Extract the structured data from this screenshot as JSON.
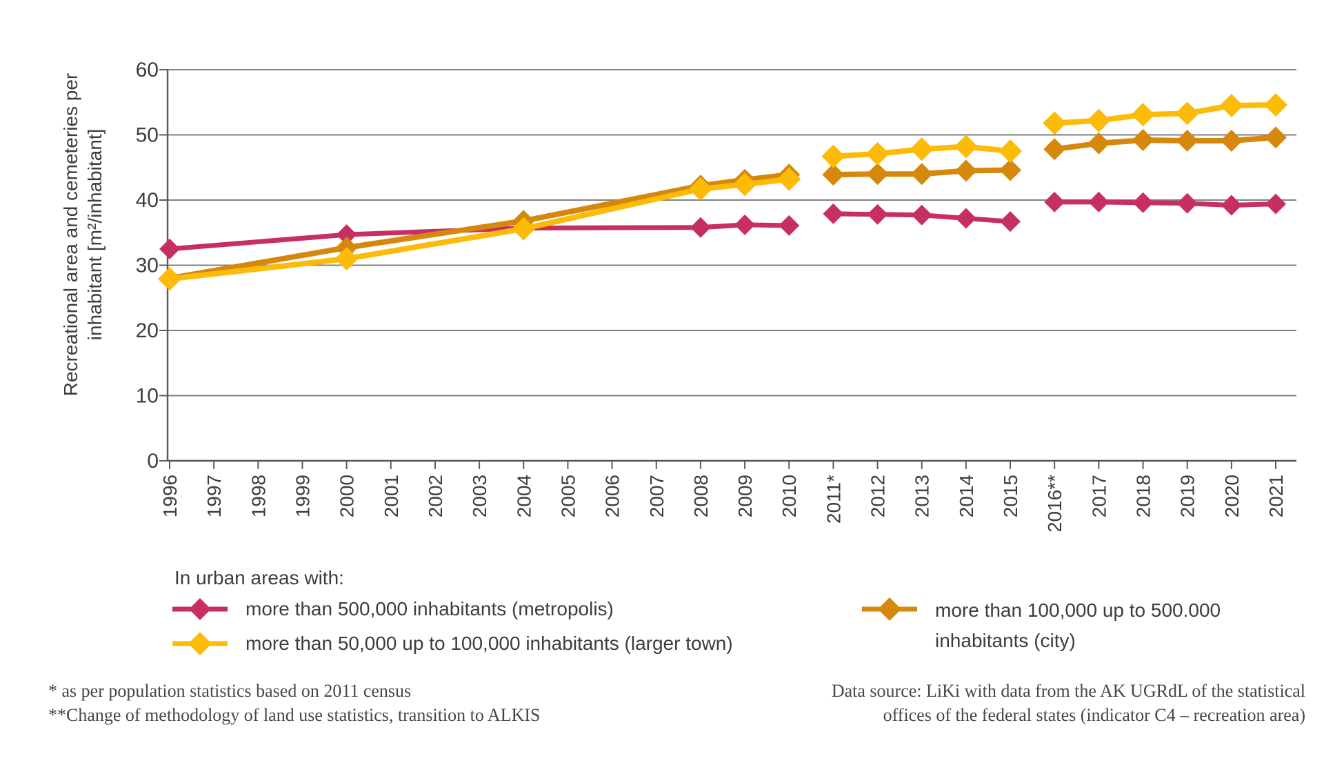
{
  "y_axis": {
    "title_line1": "Recreational area and cemeteries per",
    "title_line2": "inhabitant [m²/inhabitant]",
    "ticks": [
      "0",
      "10",
      "20",
      "30",
      "40",
      "50",
      "60"
    ]
  },
  "x_axis": {
    "labels": [
      "1996",
      "1997",
      "1998",
      "1999",
      "2000",
      "2001",
      "2002",
      "2003",
      "2004",
      "2005",
      "2006",
      "2007",
      "2008",
      "2009",
      "2010",
      "2011*",
      "2012",
      "2013",
      "2014",
      "2015",
      "2016**",
      "2017",
      "2018",
      "2019",
      "2020",
      "2021"
    ]
  },
  "chart_data": {
    "type": "line",
    "title": "",
    "xlabel": "",
    "ylabel": "Recreational area and cemeteries per inhabitant [m²/inhabitant]",
    "ylim": [
      0,
      60
    ],
    "ytick_step": 10,
    "grid": true,
    "legend_position": "bottom",
    "notes": "Lines are broken into three segments with gaps between 2010/2011 and 2015/2016; data points exist only at the listed years",
    "series": [
      {
        "name": "more than 500,000 inhabitants (metropolis)",
        "key": "metropolis",
        "color": "#c72f63",
        "line_width": 7,
        "marker": "diamond",
        "marker_r": 15,
        "segments": [
          {
            "x": [
              1996,
              2000,
              2004,
              2008,
              2009,
              2010
            ],
            "y": [
              32.5,
              34.7,
              35.7,
              35.8,
              36.2,
              36.1
            ]
          },
          {
            "x": [
              2011,
              2012,
              2013,
              2014,
              2015
            ],
            "y": [
              37.9,
              37.8,
              37.7,
              37.2,
              36.7
            ]
          },
          {
            "x": [
              2016,
              2017,
              2018,
              2019,
              2020,
              2021
            ],
            "y": [
              39.7,
              39.7,
              39.6,
              39.5,
              39.2,
              39.4
            ]
          }
        ]
      },
      {
        "name": "more than 100,000 up to 500.000 inhabitants (city)",
        "key": "city",
        "color": "#d5880c",
        "line_width": 8,
        "marker": "diamond",
        "marker_r": 16,
        "segments": [
          {
            "x": [
              1996,
              2000,
              2004,
              2008,
              2009,
              2010
            ],
            "y": [
              28.0,
              32.7,
              36.8,
              42.2,
              43.1,
              43.9
            ]
          },
          {
            "x": [
              2011,
              2012,
              2013,
              2014,
              2015
            ],
            "y": [
              43.9,
              44.0,
              44.0,
              44.5,
              44.6
            ]
          },
          {
            "x": [
              2016,
              2017,
              2018,
              2019,
              2020,
              2021
            ],
            "y": [
              47.8,
              48.7,
              49.2,
              49.1,
              49.1,
              49.6
            ]
          }
        ]
      },
      {
        "name": "more than 50,000 up to 100,000 inhabitants (larger town)",
        "key": "larger_town",
        "color": "#fbbb07",
        "line_width": 8,
        "marker": "diamond",
        "marker_r": 17,
        "segments": [
          {
            "x": [
              1996,
              2000,
              2004,
              2008,
              2009,
              2010
            ],
            "y": [
              27.9,
              31.0,
              35.6,
              41.7,
              42.4,
              43.2
            ]
          },
          {
            "x": [
              2011,
              2012,
              2013,
              2014,
              2015
            ],
            "y": [
              46.7,
              47.1,
              47.8,
              48.2,
              47.5
            ]
          },
          {
            "x": [
              2016,
              2017,
              2018,
              2019,
              2020,
              2021
            ],
            "y": [
              51.8,
              52.2,
              53.1,
              53.3,
              54.5,
              54.6
            ]
          }
        ]
      }
    ]
  },
  "legend": {
    "heading": "In urban areas with:",
    "item_metropolis": "more than 500,000 inhabitants (metropolis)",
    "item_larger_town": "more than 50,000 up to 100,000 inhabitants (larger town)",
    "item_city_line1": "more than 100,000 up to 500.000",
    "item_city_line2": "inhabitants (city)"
  },
  "footnotes": {
    "line1": "* as per population statistics based on 2011 census",
    "line2": "**Change of methodology of land use statistics, transition to ALKIS"
  },
  "source": {
    "line1": "Data source: LiKi with data from the AK UGRdL of the statistical",
    "line2": "offices of the federal states (indicator C4 – recreation area)"
  }
}
